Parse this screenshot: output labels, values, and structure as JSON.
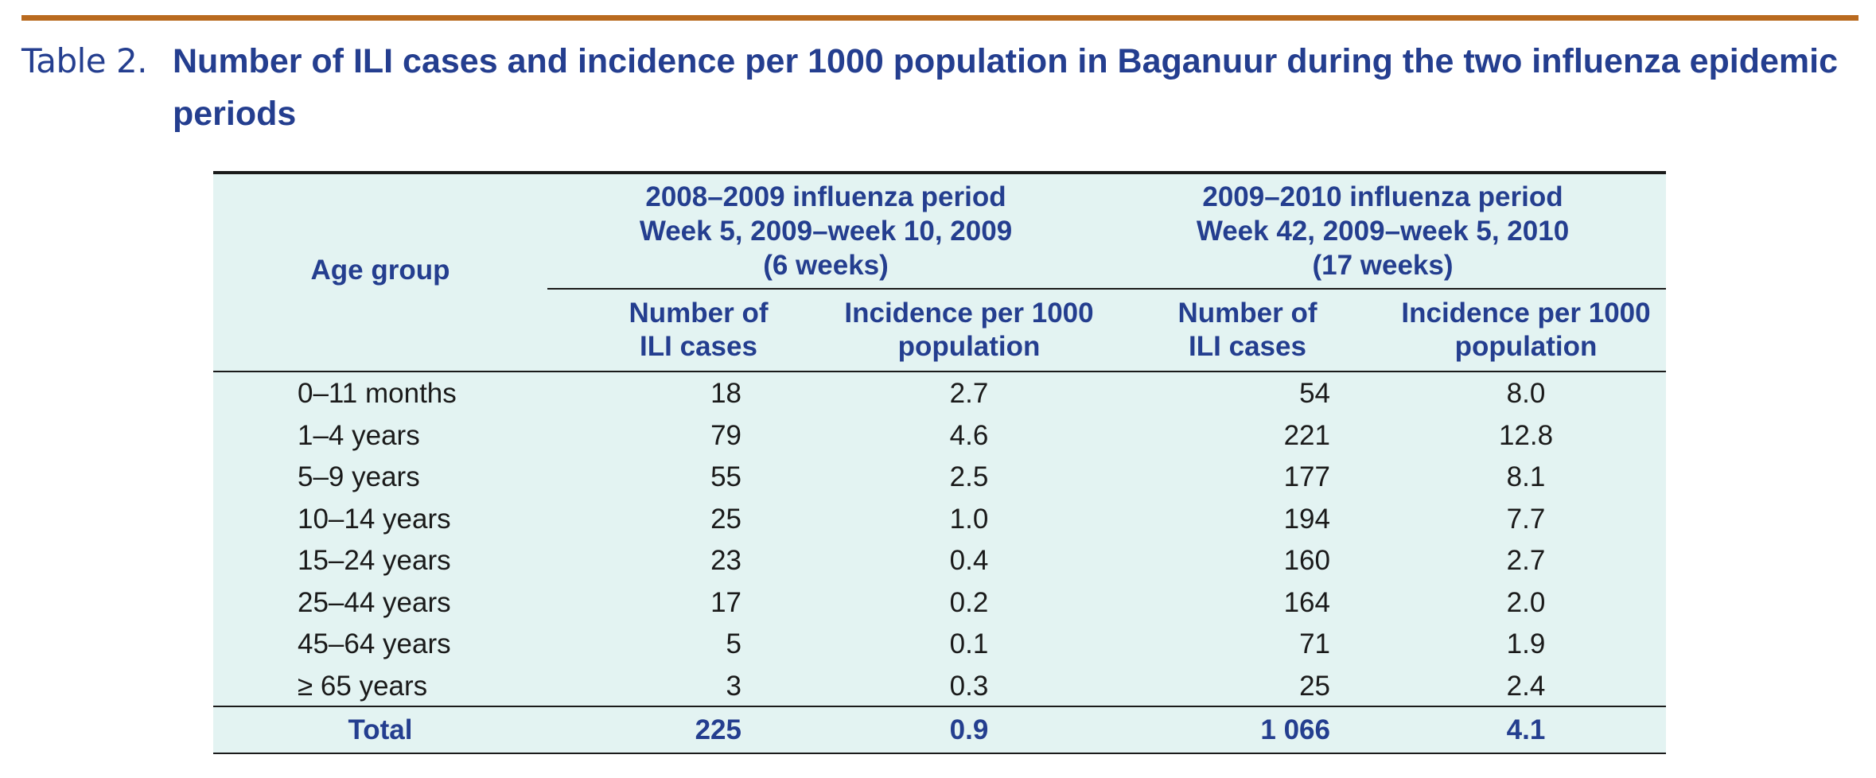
{
  "caption": {
    "label": "Table 2.",
    "title": "Number of ILI cases and incidence per 1000 population in Baganuur during the two influenza epidemic periods"
  },
  "table": {
    "age_group_header": "Age group",
    "period1": {
      "line1": "2008–2009 influenza period",
      "line2": "Week 5, 2009–week 10, 2009",
      "line3": "(6 weeks)",
      "col_cases_1": "Number of",
      "col_cases_2": "ILI cases",
      "col_inc_1": "Incidence per 1000",
      "col_inc_2": "population"
    },
    "period2": {
      "line1": "2009–2010 influenza period",
      "line2": "Week 42, 2009–week 5, 2010",
      "line3": "(17 weeks)",
      "col_cases_1": "Number of",
      "col_cases_2": "ILI cases",
      "col_inc_1": "Incidence per 1000",
      "col_inc_2": "population"
    },
    "rows": [
      {
        "age": "0–11 months",
        "p1_cases": "18",
        "p1_inc": "2.7",
        "p2_cases": "54",
        "p2_inc": "8.0"
      },
      {
        "age": "1–4 years",
        "p1_cases": "79",
        "p1_inc": "4.6",
        "p2_cases": "221",
        "p2_inc": "12.8"
      },
      {
        "age": "5–9 years",
        "p1_cases": "55",
        "p1_inc": "2.5",
        "p2_cases": "177",
        "p2_inc": "8.1"
      },
      {
        "age": "10–14 years",
        "p1_cases": "25",
        "p1_inc": "1.0",
        "p2_cases": "194",
        "p2_inc": "7.7"
      },
      {
        "age": "15–24 years",
        "p1_cases": "23",
        "p1_inc": "0.4",
        "p2_cases": "160",
        "p2_inc": "2.7"
      },
      {
        "age": "25–44 years",
        "p1_cases": "17",
        "p1_inc": "0.2",
        "p2_cases": "164",
        "p2_inc": "2.0"
      },
      {
        "age": "45–64 years",
        "p1_cases": "5",
        "p1_inc": "0.1",
        "p2_cases": "71",
        "p2_inc": "1.9"
      },
      {
        "age": "≥ 65 years",
        "p1_cases": "3",
        "p1_inc": "0.3",
        "p2_cases": "25",
        "p2_inc": "2.4"
      }
    ],
    "total": {
      "age": "Total",
      "p1_cases": "225",
      "p1_inc": "0.9",
      "p2_cases": "1 066",
      "p2_inc": "4.1"
    }
  },
  "colors": {
    "accent_rule": "#b96a1f",
    "heading_blue": "#243e8f",
    "table_background": "#e3f3f2"
  }
}
